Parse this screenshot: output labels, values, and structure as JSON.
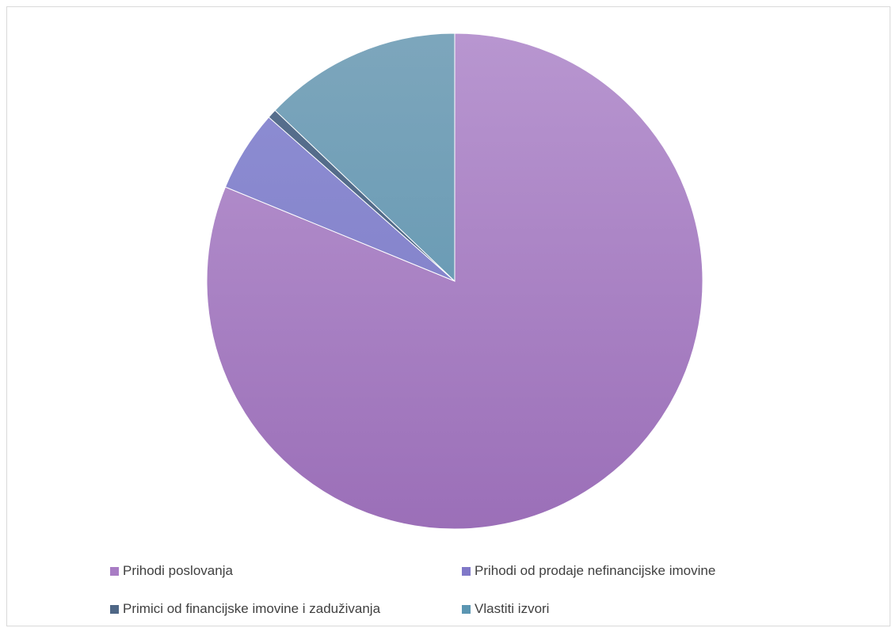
{
  "chart_data": {
    "type": "pie",
    "title": "",
    "start_angle_deg": 0,
    "direction": "clockwise",
    "slices": [
      {
        "name": "Prihodi poslovanja",
        "value": 81.2,
        "color_top": "#b896d0",
        "color_bottom": "#9b6fb8",
        "swatch": "#a87cc4"
      },
      {
        "name": "Prihodi od prodaje nefinancijske imovine",
        "value": 5.3,
        "color_top": "#8f8fd4",
        "color_bottom": "#7c7ac4",
        "swatch": "#8078c8"
      },
      {
        "name": "Primici od financijske imovine i zaduživanja",
        "value": 0.6,
        "color_top": "#58708e",
        "color_bottom": "#4a6280",
        "swatch": "#4f6786"
      },
      {
        "name": "Vlastiti izvori",
        "value": 12.9,
        "color_top": "#7da6bc",
        "color_bottom": "#5a92ae",
        "swatch": "#5b96b2"
      }
    ],
    "legend_position": "bottom"
  }
}
